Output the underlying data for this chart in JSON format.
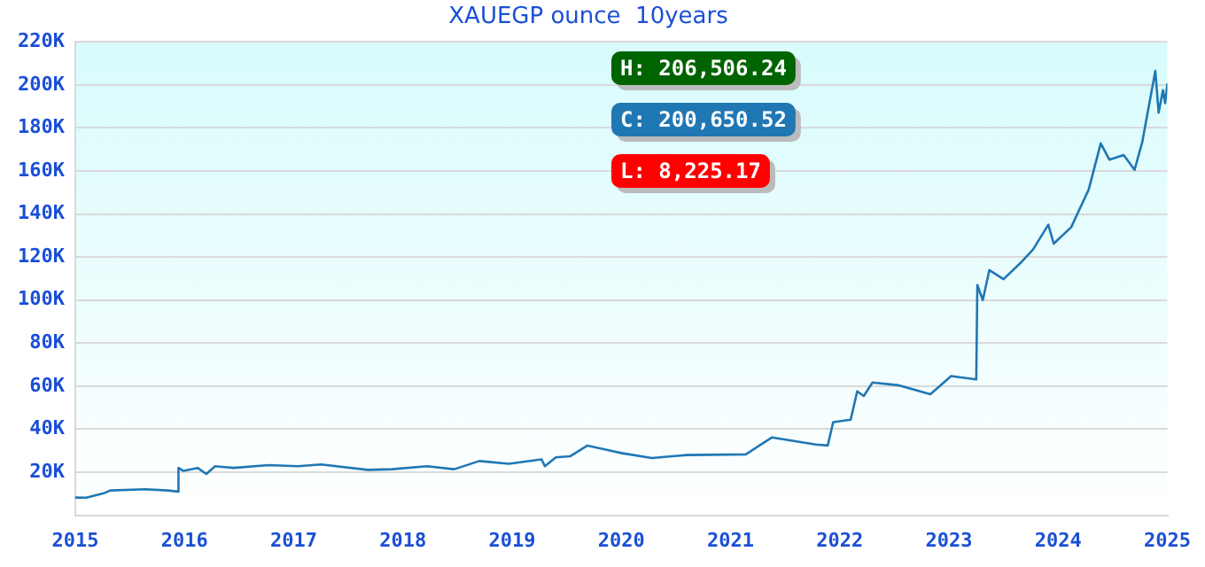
{
  "chart_data": {
    "type": "line",
    "title": "XAUEGP ounce  10years",
    "annotations": [
      "H: 206,506.24",
      "C: 200,650.52",
      "L: 8,225.17"
    ],
    "series": [
      {
        "color": "#1f77b4",
        "x": [
          2015.0,
          2015.1,
          2015.26,
          2015.32,
          2015.64,
          2015.85,
          2015.94,
          2015.945,
          2015.99,
          2016.12,
          2016.2,
          2016.28,
          2016.45,
          2016.77,
          2017.04,
          2017.25,
          2017.68,
          2017.9,
          2018.22,
          2018.47,
          2018.7,
          2018.97,
          2019.27,
          2019.3,
          2019.4,
          2019.53,
          2019.69,
          2020.01,
          2020.28,
          2020.6,
          2021.14,
          2021.38,
          2021.78,
          2021.89,
          2021.94,
          2022.1,
          2022.16,
          2022.22,
          2022.3,
          2022.54,
          2022.83,
          2023.02,
          2023.25,
          2023.26,
          2023.31,
          2023.37,
          2023.5,
          2023.67,
          2023.77,
          2023.91,
          2023.96,
          2024.12,
          2024.28,
          2024.39,
          2024.47,
          2024.6,
          2024.7,
          2024.77,
          2024.89,
          2024.92,
          2024.96,
          2024.98,
          2025.0
        ],
        "values": [
          8225.17,
          8200,
          10200,
          11500,
          12100,
          11500,
          11000,
          22000,
          20600,
          22000,
          19200,
          22800,
          22000,
          23300,
          22800,
          23600,
          21100,
          21400,
          22800,
          21400,
          25200,
          23900,
          26000,
          22800,
          26900,
          27400,
          32400,
          28800,
          26600,
          28000,
          28300,
          36200,
          32900,
          32400,
          43300,
          44400,
          57600,
          55400,
          61700,
          60400,
          56200,
          64700,
          63100,
          107000,
          100000,
          113900,
          109700,
          118000,
          123500,
          135000,
          126200,
          133900,
          151400,
          172800,
          165200,
          167400,
          160500,
          173400,
          206506.24,
          187100,
          197500,
          191500,
          200650.52
        ]
      }
    ],
    "xlim": [
      2015,
      2025
    ],
    "xticks": [
      2015,
      2016,
      2017,
      2018,
      2019,
      2020,
      2021,
      2022,
      2023,
      2024,
      2025
    ],
    "ylim": [
      0,
      220000
    ],
    "yticks": [
      {
        "value": 0,
        "label": null
      },
      {
        "value": 20000,
        "label": "20K"
      },
      {
        "value": 40000,
        "label": "40K"
      },
      {
        "value": 60000,
        "label": "60K"
      },
      {
        "value": 80000,
        "label": "80K"
      },
      {
        "value": 100000,
        "label": "100K"
      },
      {
        "value": 120000,
        "label": "120K"
      },
      {
        "value": 140000,
        "label": "140K"
      },
      {
        "value": 160000,
        "label": "160K"
      },
      {
        "value": 180000,
        "label": "180K"
      },
      {
        "value": 200000,
        "label": "200K"
      },
      {
        "value": 220000,
        "label": "220K"
      }
    ],
    "grid": "y",
    "legend": false,
    "marker": "none",
    "line_style": "solid"
  }
}
